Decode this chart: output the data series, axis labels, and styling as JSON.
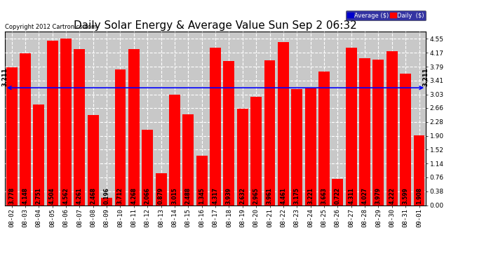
{
  "title": "Daily Solar Energy & Average Value Sun Sep 2 06:32",
  "copyright": "Copyright 2012 Cartronics.com",
  "categories": [
    "08-02",
    "08-03",
    "08-04",
    "08-05",
    "08-06",
    "08-07",
    "08-08",
    "08-09",
    "08-10",
    "08-11",
    "08-12",
    "08-13",
    "08-14",
    "08-15",
    "08-16",
    "08-17",
    "08-18",
    "08-19",
    "08-20",
    "08-21",
    "08-22",
    "08-23",
    "08-24",
    "08-25",
    "08-26",
    "08-27",
    "08-28",
    "08-29",
    "08-30",
    "08-31",
    "09-01"
  ],
  "values": [
    3.778,
    4.148,
    2.751,
    4.504,
    4.562,
    4.261,
    2.468,
    0.196,
    3.712,
    4.268,
    2.066,
    0.879,
    3.015,
    2.488,
    1.345,
    4.317,
    3.939,
    2.632,
    2.965,
    3.961,
    4.461,
    3.175,
    3.221,
    3.663,
    0.722,
    4.311,
    4.027,
    3.979,
    4.222,
    3.599,
    1.908
  ],
  "average": 3.211,
  "bar_color": "#ff0000",
  "average_line_color": "#0000ff",
  "ylim": [
    0.0,
    4.75
  ],
  "yticks": [
    0.0,
    0.38,
    0.76,
    1.14,
    1.52,
    1.9,
    2.28,
    2.66,
    3.03,
    3.41,
    3.79,
    4.17,
    4.55
  ],
  "background_color": "#ffffff",
  "plot_bg_color": "#c8c8c8",
  "title_fontsize": 11,
  "copyright_fontsize": 6,
  "bar_label_fontsize": 5.5,
  "tick_fontsize": 6.5,
  "legend_avg_color": "#0000cd",
  "legend_daily_color": "#ff0000",
  "avg_label": "Average ($)",
  "daily_label": "Daily  ($)",
  "avg_value_label": "3.211"
}
